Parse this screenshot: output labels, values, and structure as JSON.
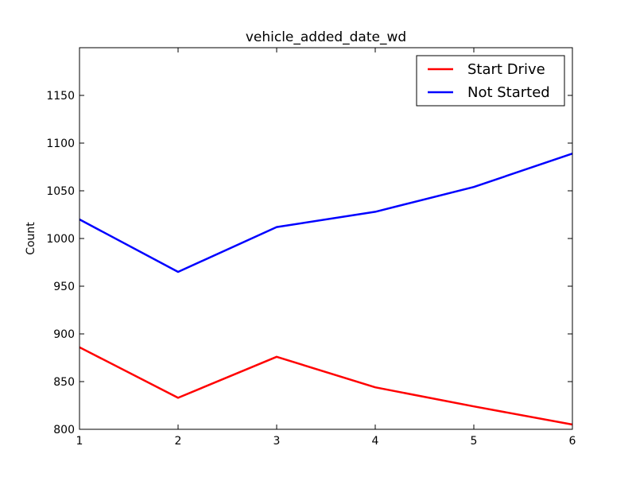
{
  "chart_data": {
    "type": "line",
    "title": "vehicle_added_date_wd",
    "xlabel": "",
    "ylabel": "Count",
    "x": [
      1,
      2,
      3,
      4,
      5,
      6
    ],
    "xlim": [
      1,
      6
    ],
    "ylim": [
      800,
      1200
    ],
    "xticks": [
      1,
      2,
      3,
      4,
      5,
      6
    ],
    "yticks": [
      800,
      850,
      900,
      950,
      1000,
      1050,
      1100,
      1150
    ],
    "grid": false,
    "legend_position": "top-right",
    "series": [
      {
        "name": "Start Drive",
        "color": "#ff0000",
        "values": [
          886,
          833,
          876,
          844,
          824,
          805
        ]
      },
      {
        "name": "Not Started",
        "color": "#0000ff",
        "values": [
          1020,
          965,
          1012,
          1028,
          1054,
          1089
        ]
      }
    ]
  }
}
